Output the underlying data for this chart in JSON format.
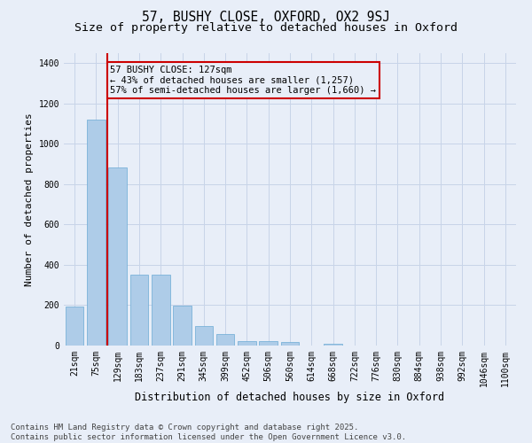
{
  "title": "57, BUSHY CLOSE, OXFORD, OX2 9SJ",
  "subtitle": "Size of property relative to detached houses in Oxford",
  "xlabel": "Distribution of detached houses by size in Oxford",
  "ylabel": "Number of detached properties",
  "categories": [
    "21sqm",
    "75sqm",
    "129sqm",
    "183sqm",
    "237sqm",
    "291sqm",
    "345sqm",
    "399sqm",
    "452sqm",
    "506sqm",
    "560sqm",
    "614sqm",
    "668sqm",
    "722sqm",
    "776sqm",
    "830sqm",
    "884sqm",
    "938sqm",
    "992sqm",
    "1046sqm",
    "1100sqm"
  ],
  "values": [
    195,
    1120,
    885,
    350,
    352,
    197,
    95,
    57,
    23,
    22,
    17,
    0,
    10,
    0,
    0,
    0,
    0,
    0,
    0,
    0,
    0
  ],
  "bar_color": "#aecce8",
  "bar_edge_color": "#6aaad4",
  "grid_color": "#c8d4e8",
  "background_color": "#e8eef8",
  "vline_color": "#cc0000",
  "vline_x_index": 2,
  "annotation_text": "57 BUSHY CLOSE: 127sqm\n← 43% of detached houses are smaller (1,257)\n57% of semi-detached houses are larger (1,660) →",
  "annotation_box_color": "#cc0000",
  "footer1": "Contains HM Land Registry data © Crown copyright and database right 2025.",
  "footer2": "Contains public sector information licensed under the Open Government Licence v3.0.",
  "ylim": [
    0,
    1450
  ],
  "yticks": [
    0,
    200,
    400,
    600,
    800,
    1000,
    1200,
    1400
  ],
  "title_fontsize": 10.5,
  "subtitle_fontsize": 9.5,
  "xlabel_fontsize": 8.5,
  "ylabel_fontsize": 8,
  "tick_fontsize": 7,
  "annotation_fontsize": 7.5,
  "footer_fontsize": 6.5
}
